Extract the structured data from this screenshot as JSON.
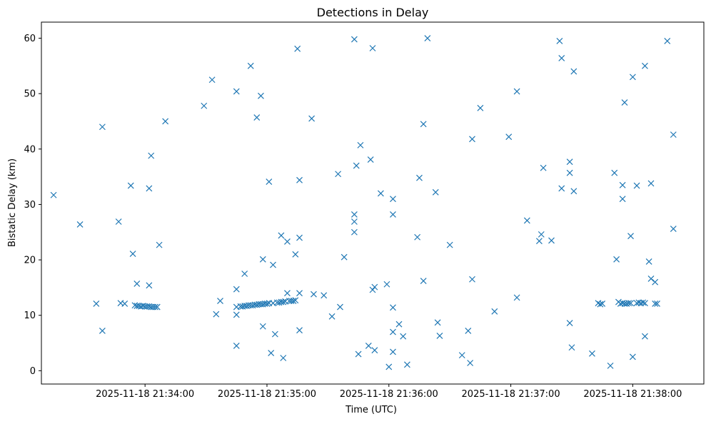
{
  "chart_data": {
    "type": "scatter",
    "title": "Detections in Delay",
    "xlabel": "Time (UTC)",
    "ylabel": "Bistatic Delay (km)",
    "x_ticks": [
      "2025-11-18 21:34:00",
      "2025-11-18 21:35:00",
      "2025-11-18 21:36:00",
      "2025-11-18 21:37:00",
      "2025-11-18 21:38:00"
    ],
    "y_ticks": [
      0,
      10,
      20,
      30,
      40,
      50,
      60
    ],
    "xlim": [
      "2025-11-18 21:33:09",
      "2025-11-18 21:38:35"
    ],
    "ylim": [
      -2.4,
      62.9
    ],
    "grid": false,
    "marker": "x",
    "color": "#1f77b4",
    "points": [
      [
        "21:33:15",
        31.7
      ],
      [
        "21:33:28",
        26.4
      ],
      [
        "21:33:36",
        12.1
      ],
      [
        "21:33:39",
        44.0
      ],
      [
        "21:33:39",
        7.2
      ],
      [
        "21:33:47",
        26.9
      ],
      [
        "21:33:48",
        12.2
      ],
      [
        "21:33:50",
        12.1
      ],
      [
        "21:33:53",
        33.4
      ],
      [
        "21:33:54",
        21.1
      ],
      [
        "21:33:55",
        11.8
      ],
      [
        "21:33:56",
        15.7
      ],
      [
        "21:33:56",
        11.7
      ],
      [
        "21:33:57",
        11.7
      ],
      [
        "21:33:58",
        11.6
      ],
      [
        "21:33:59",
        11.7
      ],
      [
        "21:34:00",
        11.6
      ],
      [
        "21:34:01",
        11.6
      ],
      [
        "21:34:02",
        32.9
      ],
      [
        "21:34:02",
        15.4
      ],
      [
        "21:34:02",
        11.6
      ],
      [
        "21:34:03",
        11.5
      ],
      [
        "21:34:03",
        38.8
      ],
      [
        "21:34:04",
        11.5
      ],
      [
        "21:34:05",
        11.5
      ],
      [
        "21:34:06",
        11.5
      ],
      [
        "21:34:07",
        22.7
      ],
      [
        "21:34:10",
        45.0
      ],
      [
        "21:34:29",
        47.8
      ],
      [
        "21:34:33",
        52.5
      ],
      [
        "21:34:35",
        10.2
      ],
      [
        "21:34:37",
        12.6
      ],
      [
        "21:34:45",
        50.4
      ],
      [
        "21:34:45",
        14.7
      ],
      [
        "21:34:45",
        11.5
      ],
      [
        "21:34:45",
        10.1
      ],
      [
        "21:34:45",
        4.5
      ],
      [
        "21:34:47",
        11.6
      ],
      [
        "21:34:48",
        11.6
      ],
      [
        "21:34:49",
        17.5
      ],
      [
        "21:34:49",
        11.7
      ],
      [
        "21:34:50",
        11.7
      ],
      [
        "21:34:51",
        11.8
      ],
      [
        "21:34:52",
        55.0
      ],
      [
        "21:34:52",
        11.8
      ],
      [
        "21:34:53",
        11.8
      ],
      [
        "21:34:54",
        11.9
      ],
      [
        "21:34:55",
        45.7
      ],
      [
        "21:34:55",
        11.9
      ],
      [
        "21:34:56",
        12.0
      ],
      [
        "21:34:57",
        49.6
      ],
      [
        "21:34:57",
        12.0
      ],
      [
        "21:34:58",
        20.1
      ],
      [
        "21:34:58",
        8.0
      ],
      [
        "21:34:58",
        12.0
      ],
      [
        "21:34:59",
        12.1
      ],
      [
        "21:35:00",
        12.1
      ],
      [
        "21:35:01",
        34.1
      ],
      [
        "21:35:01",
        12.2
      ],
      [
        "21:35:02",
        3.2
      ],
      [
        "21:35:03",
        19.1
      ],
      [
        "21:35:03",
        12.2
      ],
      [
        "21:35:04",
        6.6
      ],
      [
        "21:35:05",
        12.3
      ],
      [
        "21:35:06",
        12.3
      ],
      [
        "21:35:07",
        12.4
      ],
      [
        "21:35:07",
        24.4
      ],
      [
        "21:35:08",
        12.4
      ],
      [
        "21:35:08",
        2.3
      ],
      [
        "21:35:09",
        12.5
      ],
      [
        "21:35:10",
        14.0
      ],
      [
        "21:35:10",
        23.3
      ],
      [
        "21:35:11",
        12.6
      ],
      [
        "21:35:12",
        12.6
      ],
      [
        "21:35:13",
        12.6
      ],
      [
        "21:35:14",
        21.0
      ],
      [
        "21:35:14",
        12.7
      ],
      [
        "21:35:15",
        58.1
      ],
      [
        "21:35:16",
        34.4
      ],
      [
        "21:35:16",
        24.0
      ],
      [
        "21:35:16",
        14.0
      ],
      [
        "21:35:16",
        7.3
      ],
      [
        "21:35:22",
        45.5
      ],
      [
        "21:35:23",
        13.8
      ],
      [
        "21:35:28",
        13.6
      ],
      [
        "21:35:32",
        9.8
      ],
      [
        "21:35:35",
        35.5
      ],
      [
        "21:35:36",
        11.5
      ],
      [
        "21:35:38",
        20.5
      ],
      [
        "21:35:43",
        59.8
      ],
      [
        "21:35:43",
        28.2
      ],
      [
        "21:35:43",
        26.9
      ],
      [
        "21:35:43",
        25.0
      ],
      [
        "21:35:44",
        37.0
      ],
      [
        "21:35:45",
        3.0
      ],
      [
        "21:35:46",
        40.7
      ],
      [
        "21:35:50",
        4.5
      ],
      [
        "21:35:51",
        38.1
      ],
      [
        "21:35:52",
        58.2
      ],
      [
        "21:35:52",
        14.6
      ],
      [
        "21:35:53",
        15.1
      ],
      [
        "21:35:53",
        3.7
      ],
      [
        "21:35:56",
        32.0
      ],
      [
        "21:35:59",
        15.6
      ],
      [
        "21:36:00",
        0.7
      ],
      [
        "21:36:02",
        31.0
      ],
      [
        "21:36:02",
        28.2
      ],
      [
        "21:36:02",
        11.4
      ],
      [
        "21:36:02",
        3.4
      ],
      [
        "21:36:02",
        7.0
      ],
      [
        "21:36:05",
        8.4
      ],
      [
        "21:36:07",
        6.2
      ],
      [
        "21:36:09",
        1.1
      ],
      [
        "21:36:14",
        24.1
      ],
      [
        "21:36:15",
        34.8
      ],
      [
        "21:36:17",
        44.5
      ],
      [
        "21:36:17",
        16.2
      ],
      [
        "21:36:19",
        60.0
      ],
      [
        "21:36:23",
        32.2
      ],
      [
        "21:36:24",
        8.7
      ],
      [
        "21:36:25",
        6.3
      ],
      [
        "21:36:30",
        22.7
      ],
      [
        "21:36:36",
        2.8
      ],
      [
        "21:36:39",
        7.2
      ],
      [
        "21:36:40",
        1.4
      ],
      [
        "21:36:41",
        41.8
      ],
      [
        "21:36:41",
        16.5
      ],
      [
        "21:36:45",
        47.4
      ],
      [
        "21:36:52",
        10.7
      ],
      [
        "21:36:59",
        42.2
      ],
      [
        "21:37:03",
        50.4
      ],
      [
        "21:37:03",
        13.2
      ],
      [
        "21:37:08",
        27.1
      ],
      [
        "21:37:14",
        23.4
      ],
      [
        "21:37:15",
        24.6
      ],
      [
        "21:37:16",
        36.6
      ],
      [
        "21:37:20",
        23.5
      ],
      [
        "21:37:24",
        59.5
      ],
      [
        "21:37:25",
        56.4
      ],
      [
        "21:37:25",
        32.9
      ],
      [
        "21:37:29",
        37.7
      ],
      [
        "21:37:29",
        35.7
      ],
      [
        "21:37:29",
        8.6
      ],
      [
        "21:37:30",
        4.2
      ],
      [
        "21:37:31",
        54.0
      ],
      [
        "21:37:31",
        32.4
      ],
      [
        "21:37:40",
        3.1
      ],
      [
        "21:37:43",
        12.2
      ],
      [
        "21:37:44",
        12.0
      ],
      [
        "21:37:45",
        12.1
      ],
      [
        "21:37:49",
        0.9
      ],
      [
        "21:37:51",
        35.7
      ],
      [
        "21:37:52",
        20.1
      ],
      [
        "21:37:53",
        12.4
      ],
      [
        "21:37:54",
        12.1
      ],
      [
        "21:37:55",
        33.5
      ],
      [
        "21:37:55",
        31.0
      ],
      [
        "21:37:55",
        12.2
      ],
      [
        "21:37:56",
        48.4
      ],
      [
        "21:37:56",
        12.1
      ],
      [
        "21:37:57",
        12.1
      ],
      [
        "21:37:58",
        12.2
      ],
      [
        "21:37:59",
        24.3
      ],
      [
        "21:37:59",
        12.2
      ],
      [
        "21:38:00",
        53.0
      ],
      [
        "21:38:00",
        2.5
      ],
      [
        "21:38:02",
        33.4
      ],
      [
        "21:38:02",
        12.2
      ],
      [
        "21:38:03",
        12.3
      ],
      [
        "21:38:04",
        12.2
      ],
      [
        "21:38:05",
        12.3
      ],
      [
        "21:38:06",
        55.0
      ],
      [
        "21:38:06",
        6.2
      ],
      [
        "21:38:06",
        12.2
      ],
      [
        "21:38:08",
        19.7
      ],
      [
        "21:38:09",
        33.8
      ],
      [
        "21:38:09",
        16.6
      ],
      [
        "21:38:11",
        16.0
      ],
      [
        "21:38:11",
        12.1
      ],
      [
        "21:38:12",
        12.1
      ],
      [
        "21:38:17",
        59.5
      ],
      [
        "21:38:20",
        42.6
      ],
      [
        "21:38:20",
        25.6
      ]
    ]
  }
}
